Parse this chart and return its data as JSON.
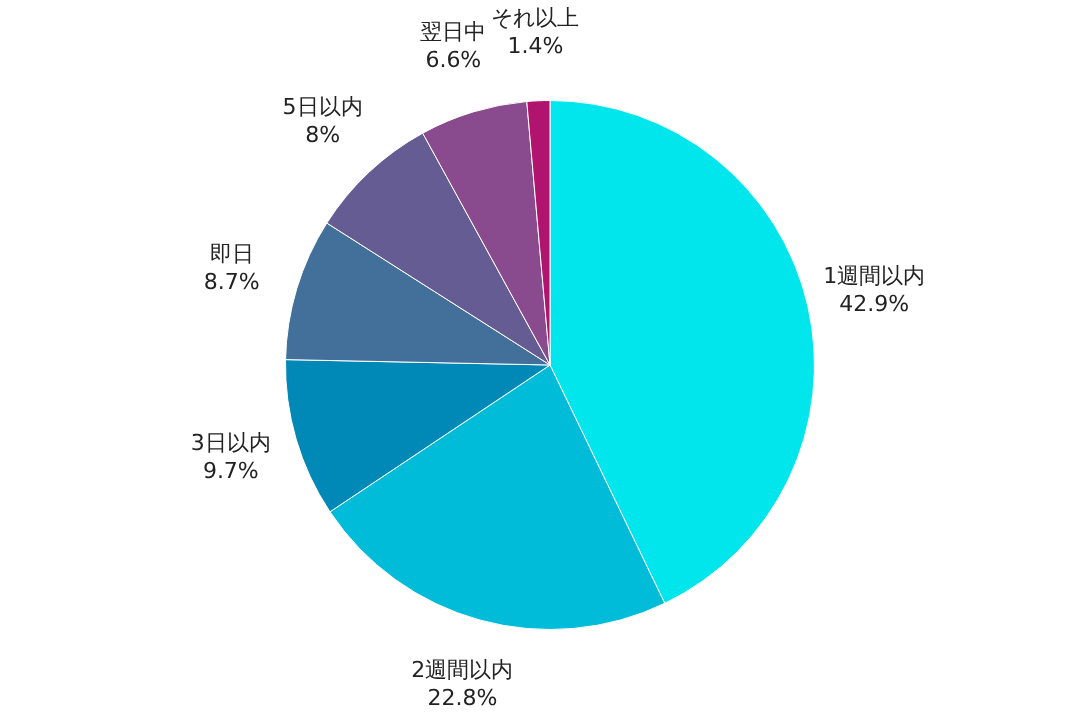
{
  "chart_data": {
    "type": "pie",
    "categories": [
      "1週間以内",
      "2週間以内",
      "3日以内",
      "即日",
      "5日以内",
      "翌日中",
      "それ以上"
    ],
    "values": [
      42.9,
      22.8,
      9.7,
      8.7,
      8,
      6.6,
      1.4
    ],
    "value_labels": [
      "42.9%",
      "22.8%",
      "9.7%",
      "8.7%",
      "8%",
      "6.6%",
      "1.4%"
    ],
    "colors": [
      "#00e6ec",
      "#00bcd8",
      "#0088b6",
      "#42709a",
      "#665c94",
      "#8a4a8e",
      "#b0146e"
    ],
    "legend": false
  }
}
